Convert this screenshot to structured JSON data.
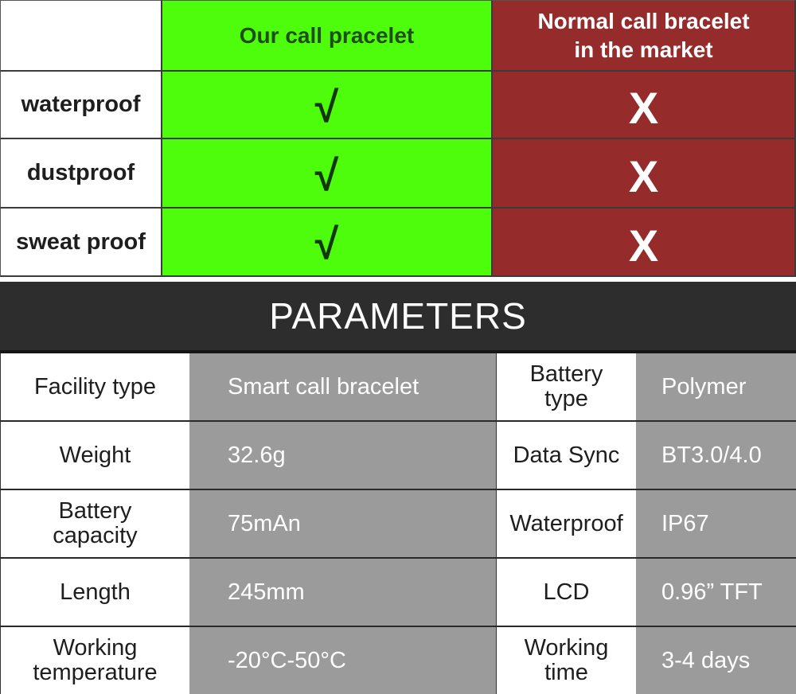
{
  "comparison": {
    "header": {
      "corner": "",
      "ours": "Our call pracelet",
      "market_line1": "Normal call bracelet",
      "market_line2": "in the market"
    },
    "rows": [
      {
        "feature": "waterproof",
        "ours": "√",
        "market": "X"
      },
      {
        "feature": "dustproof",
        "ours": "√",
        "market": "X"
      },
      {
        "feature": "sweat proof",
        "ours": "√",
        "market": "X"
      }
    ],
    "colors": {
      "ours_bg": "#4dfd0c",
      "market_bg": "#962b2b"
    }
  },
  "parameters": {
    "title": "PARAMETERS",
    "rows": [
      {
        "label1": [
          "Facility type"
        ],
        "value1": "Smart call bracelet",
        "label2": [
          "Battery",
          "type"
        ],
        "value2": "Polymer"
      },
      {
        "label1": [
          "Weight"
        ],
        "value1": "32.6g",
        "label2": [
          "Data Sync"
        ],
        "value2": "BT3.0/4.0"
      },
      {
        "label1": [
          "Battery",
          "capacity"
        ],
        "value1": "75mAn",
        "label2": [
          "Waterproof"
        ],
        "value2": "IP67"
      },
      {
        "label1": [
          "Length"
        ],
        "value1": "245mm",
        "label2": [
          "LCD"
        ],
        "value2": "0.96” TFT"
      },
      {
        "label1": [
          "Working",
          "temperature"
        ],
        "value1": "-20°C-50°C",
        "label2": [
          "Working",
          "time"
        ],
        "value2": "3-4 days"
      }
    ],
    "colors": {
      "header_bg": "#2d2d2d",
      "value_bg": "#9b9b9b"
    }
  }
}
